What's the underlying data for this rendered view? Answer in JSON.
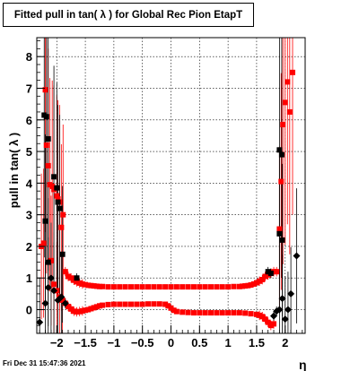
{
  "chart_data": {
    "type": "scatter",
    "title": "Fitted pull in tan( λ ) for Global Rec Pion EtapT",
    "xlabel": "η",
    "ylabel": "pull in tan( λ )",
    "xlim": [
      -2.35,
      2.35
    ],
    "ylim": [
      -0.75,
      8.6
    ],
    "grid": true,
    "x_ticks": [
      -2,
      -1.5,
      -1,
      -0.5,
      0,
      0.5,
      1,
      1.5,
      2
    ],
    "x_tick_labels": [
      "−2",
      "−1.5",
      "−1",
      "−0.5",
      "0",
      "0.5",
      "1",
      "1.5",
      "2"
    ],
    "y_ticks": [
      0,
      1,
      2,
      3,
      4,
      5,
      6,
      7,
      8
    ],
    "y_tick_labels": [
      "0",
      "1",
      "2",
      "3",
      "4",
      "5",
      "6",
      "7",
      "8"
    ],
    "colors": {
      "red": "#ff0000",
      "black": "#000000",
      "grid": "#000000"
    },
    "series": [
      {
        "color": "red",
        "marker": "square",
        "points": [
          [
            -2.27,
            2.0
          ],
          [
            -2.23,
            2.1
          ],
          [
            -2.2,
            6.95
          ],
          [
            -2.18,
            5.2
          ],
          [
            -2.15,
            4.55
          ],
          [
            -2.12,
            3.95
          ],
          [
            -2.08,
            3.9
          ],
          [
            -2.05,
            3.8
          ],
          [
            -2.0,
            3.6
          ],
          [
            -1.98,
            3.5
          ],
          [
            -1.95,
            3.4
          ],
          [
            -1.92,
            2.6
          ],
          [
            -1.89,
            3.0
          ],
          [
            -1.85,
            1.2
          ],
          [
            -1.8,
            1.05
          ],
          [
            -1.75,
            1.0
          ],
          [
            -1.7,
            0.93
          ],
          [
            -1.65,
            0.88
          ],
          [
            -1.6,
            0.84
          ],
          [
            -1.55,
            0.81
          ],
          [
            -1.5,
            0.79
          ],
          [
            -1.45,
            0.77
          ],
          [
            -1.4,
            0.76
          ],
          [
            -1.35,
            0.75
          ],
          [
            -1.3,
            0.74
          ],
          [
            -1.25,
            0.73
          ],
          [
            -1.2,
            0.73
          ],
          [
            -1.1,
            0.72
          ],
          [
            -1.0,
            0.72
          ],
          [
            -0.9,
            0.72
          ],
          [
            -0.8,
            0.72
          ],
          [
            -0.7,
            0.72
          ],
          [
            -0.6,
            0.72
          ],
          [
            -0.5,
            0.72
          ],
          [
            -0.4,
            0.72
          ],
          [
            -0.3,
            0.72
          ],
          [
            -0.2,
            0.72
          ],
          [
            -0.1,
            0.72
          ],
          [
            0.0,
            0.72
          ],
          [
            0.1,
            0.72
          ],
          [
            0.2,
            0.72
          ],
          [
            0.3,
            0.72
          ],
          [
            0.4,
            0.72
          ],
          [
            0.5,
            0.72
          ],
          [
            0.6,
            0.72
          ],
          [
            0.7,
            0.72
          ],
          [
            0.8,
            0.72
          ],
          [
            0.9,
            0.72
          ],
          [
            1.0,
            0.72
          ],
          [
            1.1,
            0.73
          ],
          [
            1.2,
            0.73
          ],
          [
            1.25,
            0.74
          ],
          [
            1.3,
            0.75
          ],
          [
            1.35,
            0.76
          ],
          [
            1.4,
            0.78
          ],
          [
            1.45,
            0.81
          ],
          [
            1.5,
            0.85
          ],
          [
            1.55,
            0.9
          ],
          [
            1.6,
            0.95
          ],
          [
            1.65,
            1.05
          ],
          [
            1.7,
            1.1
          ],
          [
            1.75,
            1.15
          ],
          [
            1.8,
            1.2
          ],
          [
            1.85,
            1.2
          ],
          [
            1.9,
            2.55
          ],
          [
            1.93,
            4.05
          ],
          [
            1.96,
            5.85
          ],
          [
            2.0,
            6.55
          ],
          [
            2.04,
            7.2
          ],
          [
            2.08,
            6.25
          ],
          [
            2.13,
            7.5
          ],
          [
            -2.1,
            1.55
          ],
          [
            -2.05,
            0.8
          ],
          [
            -2.0,
            0.6
          ],
          [
            -1.95,
            0.4
          ],
          [
            -1.9,
            0.3
          ],
          [
            -1.85,
            0.2
          ],
          [
            -1.8,
            0.1
          ],
          [
            -1.75,
            0.02
          ],
          [
            -1.7,
            -0.05
          ],
          [
            -1.65,
            -0.07
          ],
          [
            -1.6,
            -0.06
          ],
          [
            -1.55,
            -0.04
          ],
          [
            -1.5,
            -0.02
          ],
          [
            -1.45,
            0.0
          ],
          [
            -1.4,
            0.03
          ],
          [
            -1.35,
            0.06
          ],
          [
            -1.3,
            0.09
          ],
          [
            -1.25,
            0.12
          ],
          [
            -1.2,
            0.14
          ],
          [
            -1.1,
            0.16
          ],
          [
            -1.0,
            0.17
          ],
          [
            -0.9,
            0.17
          ],
          [
            -0.8,
            0.17
          ],
          [
            -0.7,
            0.17
          ],
          [
            -0.6,
            0.17
          ],
          [
            -0.5,
            0.17
          ],
          [
            -0.4,
            0.18
          ],
          [
            -0.3,
            0.18
          ],
          [
            -0.2,
            0.18
          ],
          [
            -0.1,
            0.17
          ],
          [
            -0.05,
            0.12
          ],
          [
            0.0,
            0.05
          ],
          [
            0.05,
            -0.02
          ],
          [
            0.1,
            -0.06
          ],
          [
            0.2,
            -0.08
          ],
          [
            0.3,
            -0.09
          ],
          [
            0.4,
            -0.1
          ],
          [
            0.5,
            -0.1
          ],
          [
            0.6,
            -0.1
          ],
          [
            0.7,
            -0.1
          ],
          [
            0.8,
            -0.1
          ],
          [
            0.9,
            -0.1
          ],
          [
            1.0,
            -0.1
          ],
          [
            1.1,
            -0.1
          ],
          [
            1.2,
            -0.1
          ],
          [
            1.3,
            -0.11
          ],
          [
            1.4,
            -0.13
          ],
          [
            1.5,
            -0.15
          ],
          [
            1.55,
            -0.18
          ],
          [
            1.6,
            -0.22
          ],
          [
            1.65,
            -0.3
          ],
          [
            1.7,
            -0.4
          ],
          [
            1.75,
            -0.5
          ],
          [
            1.8,
            -0.45
          ]
        ]
      },
      {
        "color": "black",
        "marker": "square",
        "points": [
          [
            -2.22,
            6.15
          ],
          [
            -2.18,
            6.1
          ],
          [
            -2.15,
            5.4
          ],
          [
            -2.05,
            4.2
          ],
          [
            -2.0,
            3.85
          ],
          [
            -1.98,
            3.4
          ],
          [
            -1.95,
            3.2
          ],
          [
            -1.9,
            1.75
          ],
          [
            -2.2,
            2.8
          ],
          [
            -2.15,
            1.5
          ],
          [
            -1.65,
            1.0
          ],
          [
            1.7,
            1.2
          ],
          [
            1.75,
            1.15
          ],
          [
            1.9,
            5.05
          ],
          [
            1.94,
            4.9
          ],
          [
            1.9,
            2.4
          ],
          [
            1.95,
            2.2
          ]
        ]
      },
      {
        "color": "black",
        "marker": "diamond",
        "points": [
          [
            -2.3,
            -0.4
          ],
          [
            -2.2,
            0.2
          ],
          [
            -2.15,
            0.7
          ],
          [
            -2.1,
            1.0
          ],
          [
            -2.05,
            0.6
          ],
          [
            -1.98,
            0.3
          ],
          [
            -1.92,
            0.4
          ],
          [
            -1.85,
            0.2
          ],
          [
            1.8,
            -0.2
          ],
          [
            1.85,
            -0.05
          ],
          [
            1.9,
            0.0
          ],
          [
            1.95,
            0.35
          ],
          [
            2.0,
            -0.3
          ],
          [
            2.05,
            0.0
          ],
          [
            2.1,
            0.5
          ],
          [
            2.2,
            1.7
          ]
        ]
      }
    ]
  },
  "footer": {
    "date": "Fri Dec 31 15:47:36 2021"
  }
}
